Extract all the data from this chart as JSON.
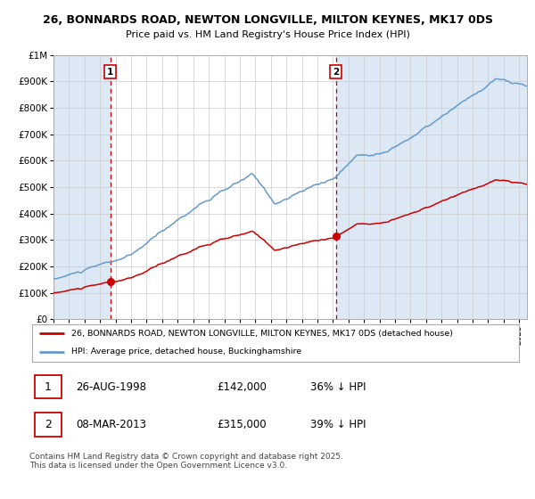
{
  "title1": "26, BONNARDS ROAD, NEWTON LONGVILLE, MILTON KEYNES, MK17 0DS",
  "title2": "Price paid vs. HM Land Registry's House Price Index (HPI)",
  "legend_line1": "26, BONNARDS ROAD, NEWTON LONGVILLE, MILTON KEYNES, MK17 0DS (detached house)",
  "legend_line2": "HPI: Average price, detached house, Buckinghamshire",
  "sale1_label": "1",
  "sale1_date": "26-AUG-1998",
  "sale1_price": "£142,000",
  "sale1_hpi": "36% ↓ HPI",
  "sale2_label": "2",
  "sale2_date": "08-MAR-2013",
  "sale2_price": "£315,000",
  "sale2_hpi": "39% ↓ HPI",
  "copyright": "Contains HM Land Registry data © Crown copyright and database right 2025.\nThis data is licensed under the Open Government Licence v3.0.",
  "sale1_x": 1998.65,
  "sale1_y": 142000,
  "sale2_x": 2013.18,
  "sale2_y": 315000,
  "red_color": "#cc0000",
  "blue_color": "#6699cc",
  "bg_color": "#dce9f5",
  "grid_color": "#cccccc",
  "ylim": [
    0,
    1000000
  ],
  "xlim_start": 1995.0,
  "xlim_end": 2025.5
}
